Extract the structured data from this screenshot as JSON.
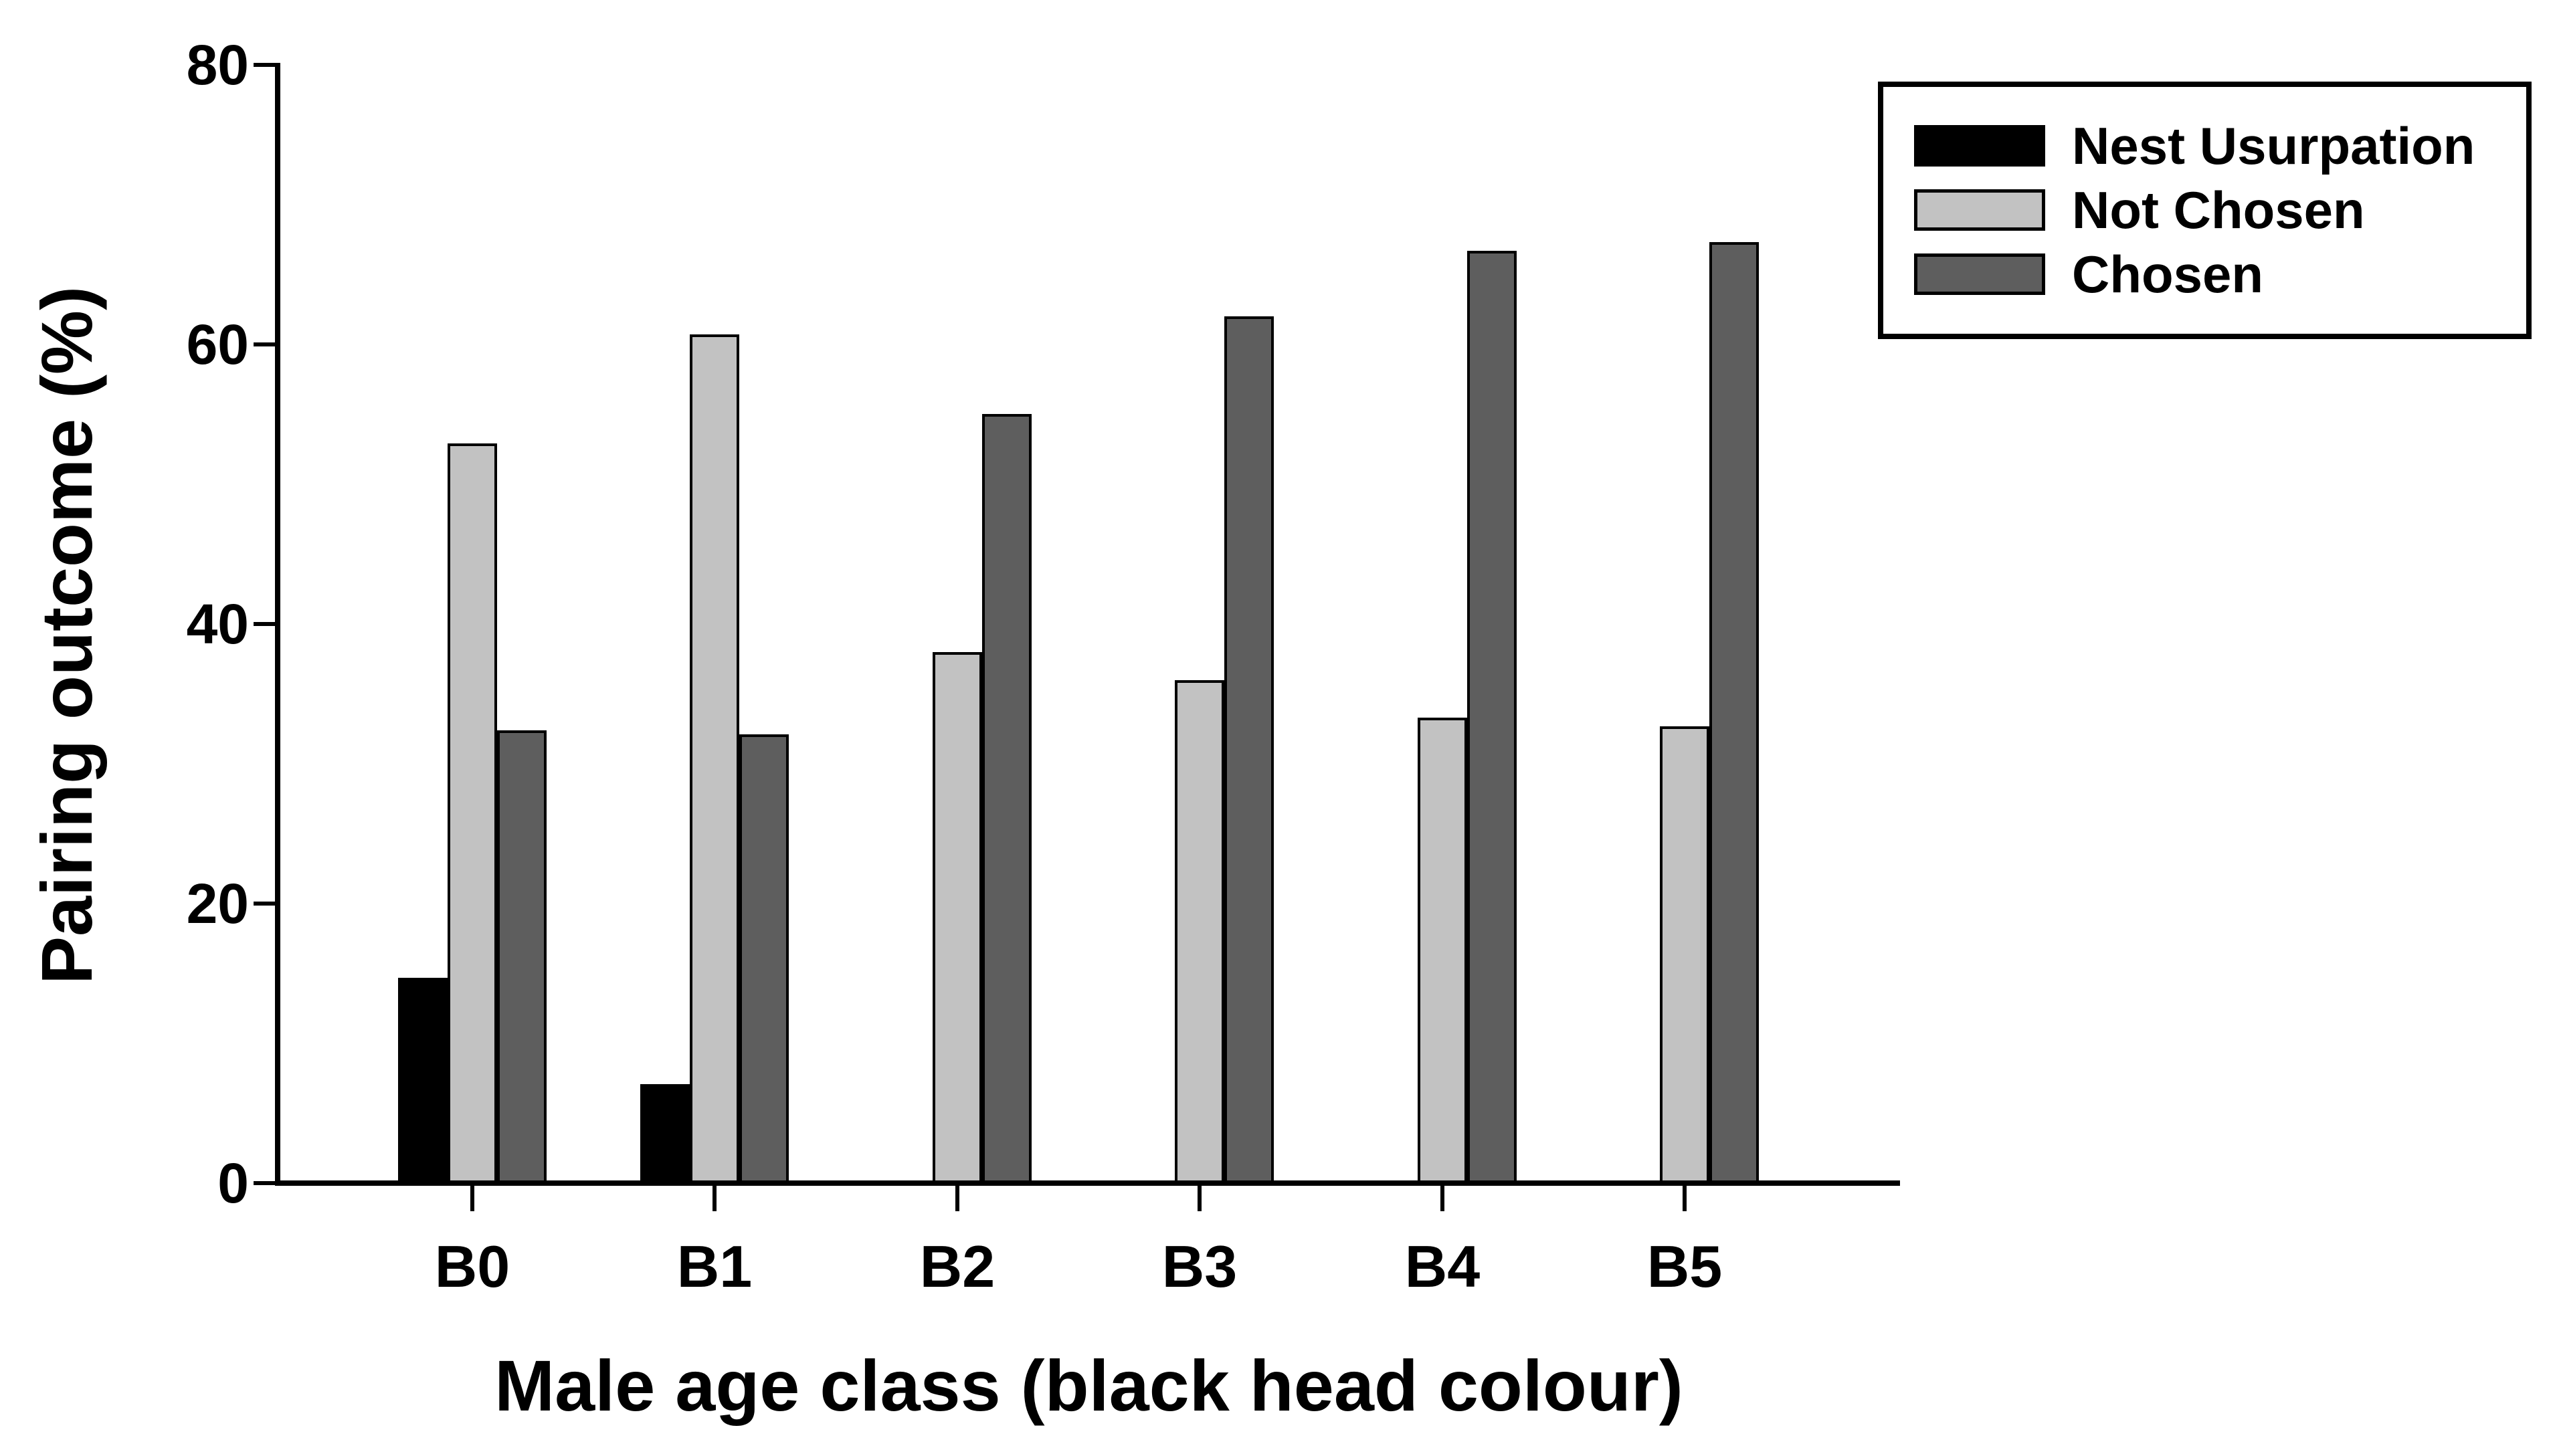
{
  "chart_data": {
    "type": "bar",
    "title": "",
    "categories": [
      "B0",
      "B1",
      "B2",
      "B3",
      "B4",
      "B5"
    ],
    "series": [
      {
        "name": "Nest Usurpation",
        "color": "#000000",
        "values": [
          14.7,
          7.1,
          null,
          null,
          null,
          null
        ]
      },
      {
        "name": "Not Chosen",
        "color": "#C2C2C2",
        "values": [
          52.9,
          60.7,
          38.0,
          36.0,
          33.3,
          32.7
        ]
      },
      {
        "name": "Chosen",
        "color": "#5E5E5E",
        "values": [
          32.4,
          32.1,
          55.0,
          62.0,
          66.7,
          67.3
        ]
      }
    ],
    "xlabel": "Male age class (black head colour)",
    "ylabel": "Pairing outcome (%)",
    "ylim": [
      0,
      80
    ],
    "yticks": [
      0,
      20,
      40,
      60,
      80
    ],
    "grid": false,
    "legend_position": "top-right",
    "bar_border_color": "#000000",
    "axis_color": "#000000",
    "background_color": "#FFFFFF"
  }
}
